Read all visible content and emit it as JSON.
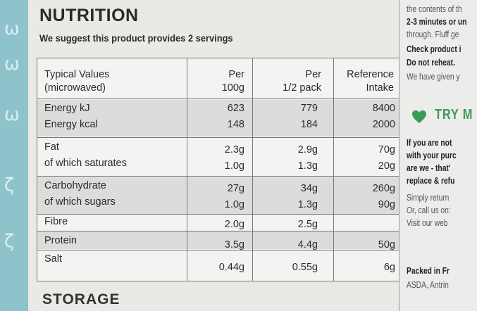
{
  "title": "NUTRITION",
  "servings_note": "We suggest this product provides 2 servings",
  "storage_heading": "STORAGE",
  "table": {
    "headers": {
      "label": [
        "Typical Values",
        "(microwaved)"
      ],
      "per100": [
        "Per",
        "100g"
      ],
      "perhalf": [
        "Per",
        "1/2 pack"
      ],
      "ri": [
        "Reference",
        "Intake"
      ]
    },
    "rows": [
      {
        "label": "Energy kJ",
        "per100": "623",
        "perhalf": "779",
        "ri": "8400"
      },
      {
        "label": "Energy kcal",
        "per100": "148",
        "perhalf": "184",
        "ri": "2000"
      },
      {
        "label": "Fat",
        "per100": "2.3g",
        "perhalf": "2.9g",
        "ri": "70g"
      },
      {
        "label": "of which saturates",
        "per100": "1.0g",
        "perhalf": "1.3g",
        "ri": "20g"
      },
      {
        "label": "Carbohydrate",
        "per100": "27g",
        "perhalf": "34g",
        "ri": "260g"
      },
      {
        "label": "of which sugars",
        "per100": "1.0g",
        "perhalf": "1.3g",
        "ri": "90g"
      },
      {
        "label": "Fibre",
        "per100": "2.0g",
        "perhalf": "2.5g",
        "ri": ""
      },
      {
        "label": "Protein",
        "per100": "3.5g",
        "perhalf": "4.4g",
        "ri": "50g"
      },
      {
        "label": "Salt",
        "per100": "0.44g",
        "perhalf": "0.55g",
        "ri": "6g"
      }
    ]
  },
  "side_text": {
    "l1": "the contents of th",
    "l2": "2-3 minutes or un",
    "l3": "through. Fluff ge",
    "l4": "Check product i",
    "l5": "Do not reheat.",
    "l6": "We have given y",
    "try": "TRY M",
    "l7": "If you are not",
    "l8": "with your purc",
    "l9": "are we - that'",
    "l10": "replace & refu",
    "l11": "Simply return",
    "l12": "Or, call us on:",
    "l13": "Visit our web",
    "l14": "Packed in Fr",
    "l15": "ASDA, Antrin"
  },
  "colors": {
    "accent_teal": "#8ec3cc",
    "heart_green": "#3a9a58"
  }
}
